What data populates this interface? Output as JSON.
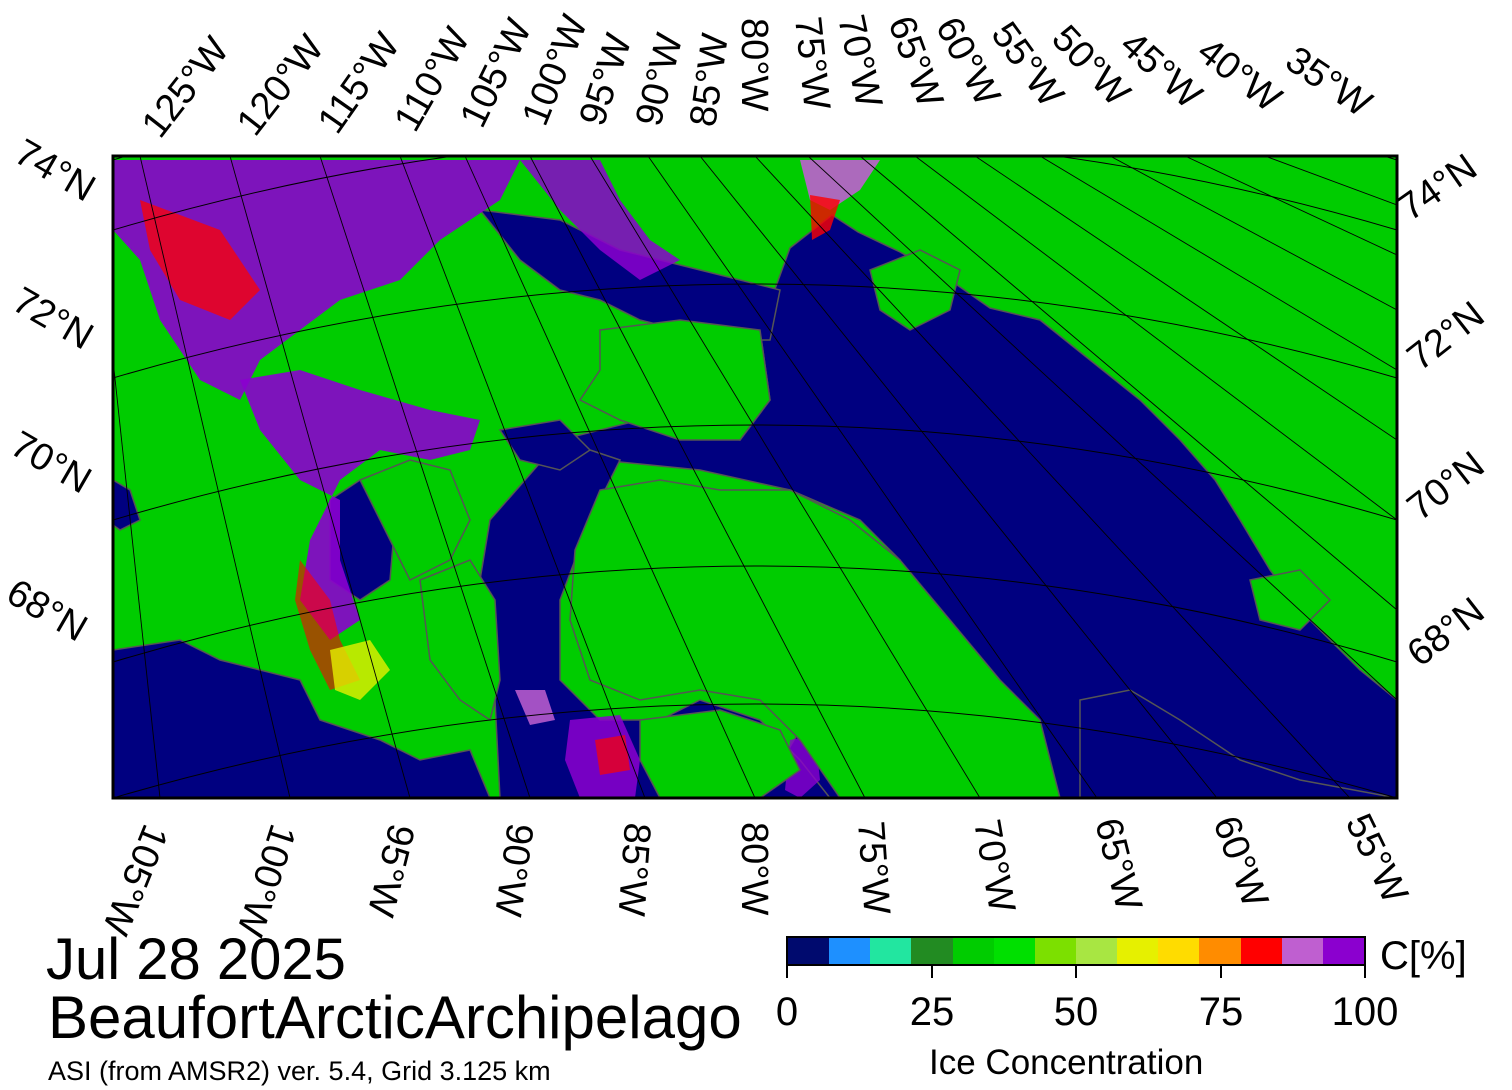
{
  "map": {
    "date": "Jul 28 2025",
    "region": "BeaufortArcticArchipelago",
    "source": "ASI (from AMSR2) ver. 5.4,  Grid 3.125 km",
    "colors": {
      "land": "#00cc00",
      "open_water": "#000080",
      "coast": "#5a5a5a",
      "graticule": "#000000"
    },
    "top_lon_labels": [
      "125°W",
      "120°W",
      "115°W",
      "110°W",
      "105°W",
      "100°W",
      "95°W",
      "90°W",
      "85°W",
      "80°W",
      "75°W",
      "70°W",
      "65°W",
      "60°W",
      "55°W",
      "50°W",
      "45°W",
      "40°W",
      "35°W"
    ],
    "bottom_lon_labels": [
      "105°W",
      "100°W",
      "95°W",
      "90°W",
      "85°W",
      "80°W",
      "75°W",
      "70°W",
      "65°W",
      "60°W",
      "55°W"
    ],
    "left_lat_labels": [
      "74°N",
      "72°N",
      "70°N",
      "68°N"
    ],
    "right_lat_labels": [
      "74°N",
      "72°N",
      "70°N",
      "68°N"
    ]
  },
  "colorbar": {
    "unit": "C[%]",
    "caption": "Ice Concentration",
    "tick_labels": [
      "0",
      "25",
      "50",
      "75",
      "100"
    ],
    "colors": [
      "#000a6e",
      "#1e90ff",
      "#22e6a0",
      "#228b22",
      "#00cc00",
      "#00e000",
      "#7ce000",
      "#a8e642",
      "#e6f000",
      "#ffdc00",
      "#ff8c00",
      "#ff0000",
      "#bf5fd0",
      "#8b00cf"
    ]
  }
}
